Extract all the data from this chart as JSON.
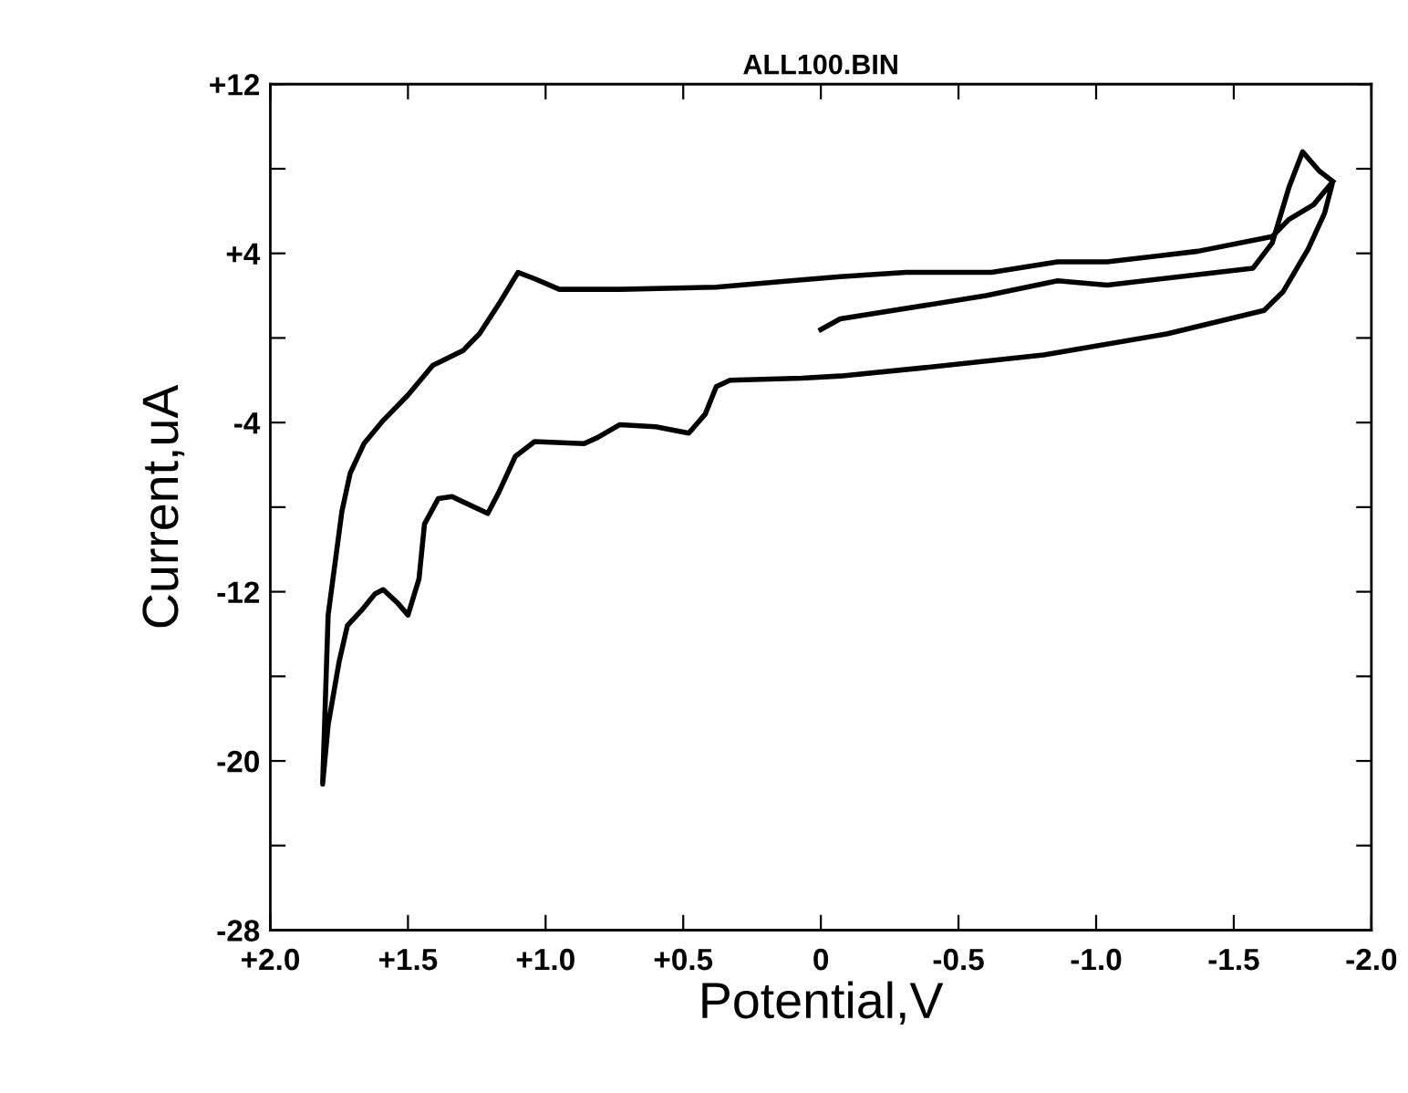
{
  "chart_data": {
    "type": "line",
    "title": "ALL100.BIN",
    "xlabel": "Potential,V",
    "ylabel": "Current,uA",
    "xlim": [
      2.0,
      -2.0
    ],
    "ylim": [
      -28,
      12
    ],
    "xticks": [
      {
        "value": 2.0,
        "label": "+2.0"
      },
      {
        "value": 1.5,
        "label": "+1.5"
      },
      {
        "value": 1.0,
        "label": "+1.0"
      },
      {
        "value": 0.5,
        "label": "+0.5"
      },
      {
        "value": 0,
        "label": "0"
      },
      {
        "value": -0.5,
        "label": "-0.5"
      },
      {
        "value": -1.0,
        "label": "-1.0"
      },
      {
        "value": -1.5,
        "label": "-1.5"
      },
      {
        "value": -2.0,
        "label": "-2.0"
      }
    ],
    "yticks": [
      {
        "value": 12,
        "label": "+12"
      },
      {
        "value": 8,
        "label": null
      },
      {
        "value": 4,
        "label": "+4"
      },
      {
        "value": 0,
        "label": null
      },
      -4,
      {
        "value": -8,
        "label": null
      },
      -12,
      {
        "value": -16,
        "label": null
      },
      -20,
      {
        "value": -24,
        "label": null
      },
      -28
    ],
    "grid": false,
    "marker": "none",
    "line_style": "solid",
    "series": [
      {
        "color": "#000000",
        "x": [
          0.0,
          -0.07,
          -0.6,
          -0.86,
          -1.04,
          -1.57,
          -1.64,
          -1.7,
          -1.75,
          -1.81,
          -1.86,
          -1.83,
          -1.77,
          -1.68,
          -1.61,
          -1.26,
          -0.81,
          -0.38,
          -0.07,
          0.07,
          0.33,
          0.38,
          0.42,
          0.48,
          0.6,
          0.73,
          0.81,
          0.86,
          1.04,
          1.11,
          1.17,
          1.21,
          1.34,
          1.39,
          1.44,
          1.46,
          1.5,
          1.54,
          1.59,
          1.62,
          1.67,
          1.72,
          1.75,
          1.79,
          1.81,
          1.79,
          1.74,
          1.71,
          1.66,
          1.59,
          1.5,
          1.41,
          1.3,
          1.24,
          1.17,
          1.1,
          1.04,
          0.95,
          0.73,
          0.38,
          0.11,
          -0.07,
          -0.31,
          -0.62,
          -0.86,
          -1.04,
          -1.37,
          -1.64,
          -1.7,
          -1.79,
          -1.86
        ],
        "values": [
          0.4,
          0.9,
          2.0,
          2.7,
          2.5,
          3.3,
          4.5,
          7.1,
          8.8,
          7.9,
          7.4,
          5.9,
          4.2,
          2.2,
          1.3,
          0.2,
          -0.8,
          -1.4,
          -1.8,
          -1.9,
          -2.0,
          -2.3,
          -3.6,
          -4.5,
          -4.2,
          -4.1,
          -4.7,
          -5.0,
          -4.9,
          -5.6,
          -7.3,
          -8.3,
          -7.5,
          -7.6,
          -8.8,
          -11.4,
          -13.1,
          -12.5,
          -11.9,
          -12.1,
          -12.9,
          -13.6,
          -15.3,
          -18.3,
          -21.1,
          -13.1,
          -8.2,
          -6.4,
          -5.0,
          -3.9,
          -2.7,
          -1.3,
          -0.6,
          0.2,
          1.6,
          3.1,
          2.8,
          2.3,
          2.3,
          2.4,
          2.7,
          2.9,
          3.1,
          3.1,
          3.6,
          3.6,
          4.1,
          4.8,
          5.6,
          6.3,
          7.4
        ]
      }
    ]
  }
}
